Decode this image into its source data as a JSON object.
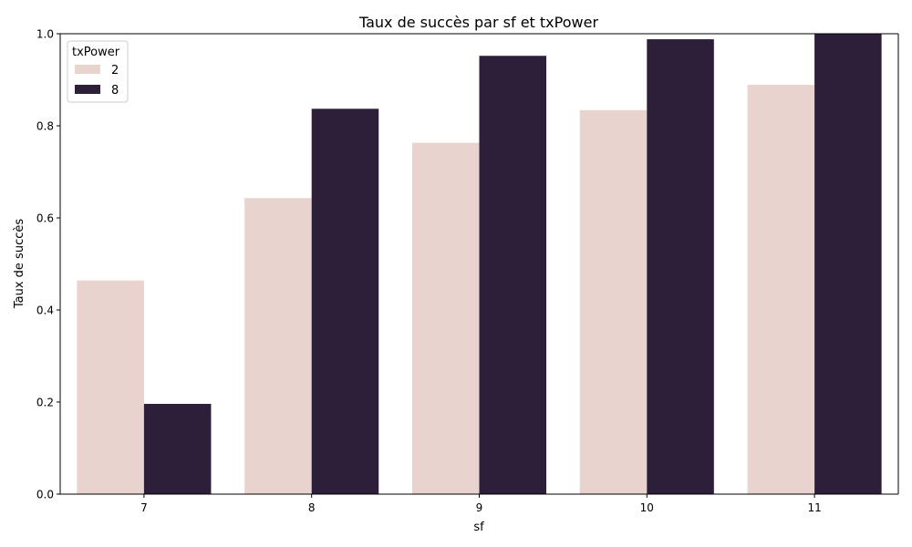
{
  "chart_data": {
    "type": "bar",
    "title": "Taux de succès par sf et txPower",
    "xlabel": "sf",
    "ylabel": "Taux de succès",
    "categories": [
      "7",
      "8",
      "9",
      "10",
      "11"
    ],
    "ylim": [
      0,
      1
    ],
    "yticks": [
      "0.0",
      "0.2",
      "0.4",
      "0.6",
      "0.8",
      "1.0"
    ],
    "grid": false,
    "legend": {
      "title": "txPower",
      "position": "top-left"
    },
    "series": [
      {
        "name": "2",
        "color": "#e8d3ce",
        "values": [
          0.464,
          0.643,
          0.763,
          0.834,
          0.889
        ]
      },
      {
        "name": "8",
        "color": "#2d1f3a",
        "values": [
          0.196,
          0.837,
          0.952,
          0.988,
          1.0
        ]
      }
    ]
  }
}
